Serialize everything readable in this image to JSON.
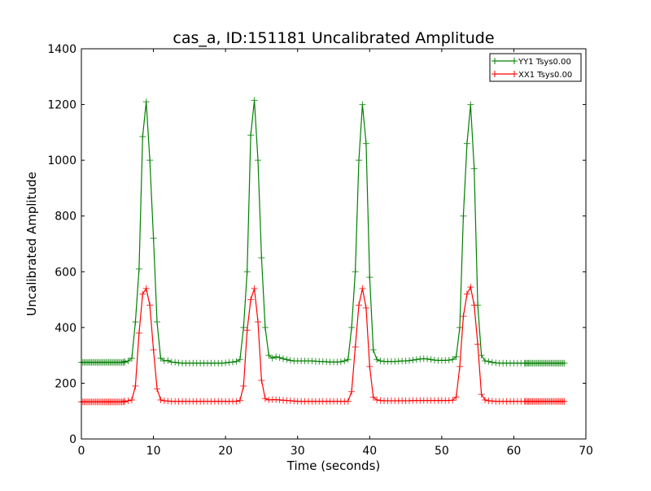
{
  "chart_data": {
    "type": "line",
    "title": "cas_a, ID:151181 Uncalibrated Amplitude",
    "xlabel": "Time (seconds)",
    "ylabel": "Uncalibrated Amplitude",
    "xlim": [
      0,
      70
    ],
    "ylim": [
      0,
      1400
    ],
    "xticks": [
      0,
      10,
      20,
      30,
      40,
      50,
      60,
      70
    ],
    "yticks": [
      0,
      200,
      400,
      600,
      800,
      1000,
      1200,
      1400
    ],
    "grid": false,
    "legend_position": "top-right",
    "series": [
      {
        "name": "YY1 Tsys0.00",
        "color": "#008000",
        "marker": "+",
        "x_start": 6.0,
        "x_step": 0.5,
        "values": [
          278,
          280,
          290,
          420,
          610,
          1085,
          1210,
          1000,
          720,
          420,
          290,
          280,
          282,
          276,
          275,
          273,
          272,
          272,
          272,
          272,
          272,
          272,
          272,
          272,
          272,
          272,
          272,
          272,
          273,
          275,
          276,
          278,
          285,
          400,
          600,
          1090,
          1215,
          1000,
          650,
          400,
          300,
          290,
          295,
          292,
          288,
          285,
          282,
          280,
          280,
          280,
          280,
          280,
          280,
          279,
          278,
          278,
          277,
          276,
          276,
          276,
          277,
          280,
          285,
          400,
          600,
          1000,
          1200,
          1060,
          580,
          320,
          285,
          280,
          278,
          278,
          278,
          278,
          279,
          280,
          280,
          281,
          283,
          285,
          287,
          288,
          287,
          285,
          283,
          282,
          282,
          282,
          283,
          285,
          295,
          400,
          800,
          1060,
          1200,
          970,
          480,
          300,
          280,
          278,
          275,
          273,
          272,
          272,
          272,
          272,
          272,
          272,
          272,
          272,
          272
        ],
        "dense_segments": [
          {
            "from": 0,
            "to": 6,
            "step": 0.2,
            "value": 275
          },
          {
            "from": 61.6,
            "to": 67,
            "step": 0.2,
            "value": 272
          }
        ]
      },
      {
        "name": "XX1 Tsys0.00",
        "color": "#ff0000",
        "marker": "+",
        "x_start": 6.0,
        "x_step": 0.5,
        "values": [
          136,
          137,
          140,
          190,
          380,
          520,
          540,
          480,
          320,
          180,
          140,
          137,
          136,
          135,
          135,
          135,
          135,
          135,
          135,
          135,
          135,
          135,
          135,
          135,
          135,
          135,
          135,
          135,
          135,
          135,
          135,
          135,
          138,
          190,
          390,
          500,
          540,
          420,
          210,
          145,
          140,
          141,
          141,
          140,
          139,
          138,
          137,
          136,
          135,
          135,
          135,
          135,
          135,
          135,
          135,
          135,
          135,
          135,
          135,
          135,
          135,
          135,
          135,
          170,
          330,
          480,
          540,
          470,
          260,
          150,
          140,
          138,
          137,
          137,
          137,
          137,
          137,
          137,
          137,
          137,
          138,
          138,
          138,
          138,
          138,
          138,
          138,
          138,
          138,
          138,
          138,
          139,
          150,
          260,
          440,
          520,
          545,
          480,
          340,
          160,
          140,
          137,
          136,
          135,
          135,
          135,
          135,
          135,
          135,
          135,
          135,
          135,
          135
        ],
        "dense_segments": [
          {
            "from": 0,
            "to": 6,
            "step": 0.2,
            "value": 133
          },
          {
            "from": 61.6,
            "to": 67,
            "step": 0.2,
            "value": 135
          }
        ]
      }
    ]
  }
}
